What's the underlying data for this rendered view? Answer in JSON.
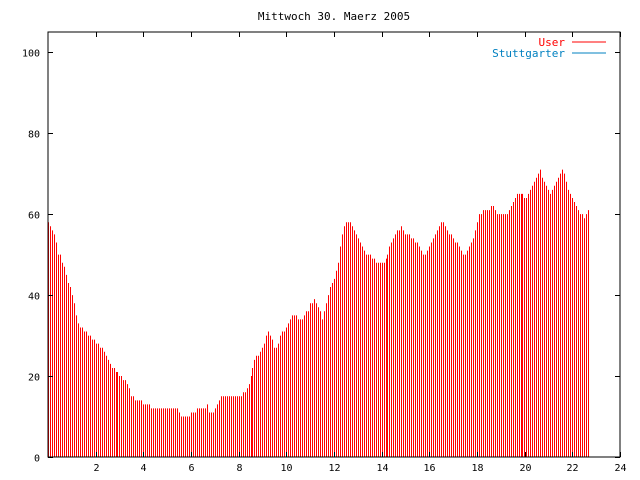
{
  "chart_data": {
    "type": "bar",
    "title": "Mittwoch 30. Maerz 2005",
    "xlabel": "",
    "ylabel": "",
    "xlim": [
      0,
      24
    ],
    "ylim": [
      0,
      105
    ],
    "x_ticks": [
      2,
      4,
      6,
      8,
      10,
      12,
      14,
      16,
      18,
      20,
      22,
      24
    ],
    "y_ticks": [
      0,
      20,
      40,
      60,
      80,
      100
    ],
    "grid": false,
    "legend_position": "top-right",
    "legend": [
      {
        "name": "User",
        "color": "#ff0000"
      },
      {
        "name": "Stuttgarter",
        "color": "#0080c0"
      }
    ],
    "series": [
      {
        "name": "User",
        "color": "#ff0000",
        "x_start": 0,
        "x_step": 0.0833,
        "values": [
          58,
          57,
          56,
          55,
          53,
          50,
          50,
          48,
          47,
          45,
          43,
          42,
          40,
          38,
          35,
          33,
          32,
          32,
          31,
          31,
          30,
          30,
          29,
          29,
          28,
          28,
          27,
          27,
          26,
          25,
          24,
          23,
          22,
          22,
          21,
          21,
          20,
          20,
          19,
          19,
          18,
          17,
          15,
          15,
          14,
          14,
          14,
          14,
          13,
          13,
          13,
          13,
          12,
          12,
          12,
          12,
          12,
          12,
          12,
          12,
          12,
          12,
          12,
          12,
          12,
          12,
          11,
          10,
          10,
          10,
          10,
          10,
          11,
          11,
          11,
          12,
          12,
          12,
          12,
          12,
          13,
          11,
          11,
          11,
          12,
          13,
          14,
          15,
          15,
          15,
          15,
          15,
          15,
          15,
          15,
          15,
          15,
          15,
          16,
          16,
          17,
          18,
          20,
          22,
          24,
          25,
          25,
          26,
          27,
          28,
          30,
          31,
          30,
          29,
          27,
          27,
          28,
          30,
          31,
          31,
          32,
          33,
          34,
          35,
          35,
          35,
          34,
          34,
          34,
          35,
          36,
          36,
          38,
          38,
          39,
          38,
          37,
          36,
          34,
          36,
          38,
          40,
          42,
          43,
          44,
          46,
          48,
          52,
          55,
          57,
          58,
          58,
          58,
          57,
          56,
          55,
          54,
          53,
          52,
          51,
          50,
          50,
          50,
          49,
          49,
          48,
          48,
          48,
          48,
          48,
          49,
          50,
          52,
          53,
          54,
          55,
          56,
          56,
          57,
          56,
          55,
          55,
          55,
          54,
          54,
          53,
          53,
          52,
          51,
          50,
          50,
          51,
          52,
          53,
          54,
          55,
          56,
          57,
          58,
          58,
          57,
          56,
          55,
          55,
          54,
          53,
          53,
          52,
          51,
          50,
          50,
          51,
          52,
          53,
          54,
          56,
          58,
          60,
          60,
          61,
          61,
          61,
          61,
          62,
          62,
          61,
          60,
          60,
          60,
          60,
          60,
          60,
          61,
          62,
          63,
          64,
          65,
          65,
          65,
          65,
          64,
          64,
          65,
          66,
          67,
          68,
          69,
          70,
          71,
          69,
          68,
          67,
          66,
          65,
          66,
          67,
          68,
          69,
          70,
          71,
          70,
          68,
          66,
          65,
          64,
          63,
          62,
          61,
          60,
          60,
          59,
          60,
          61
        ]
      },
      {
        "name": "Stuttgarter",
        "color": "#0080c0",
        "values": []
      }
    ]
  }
}
